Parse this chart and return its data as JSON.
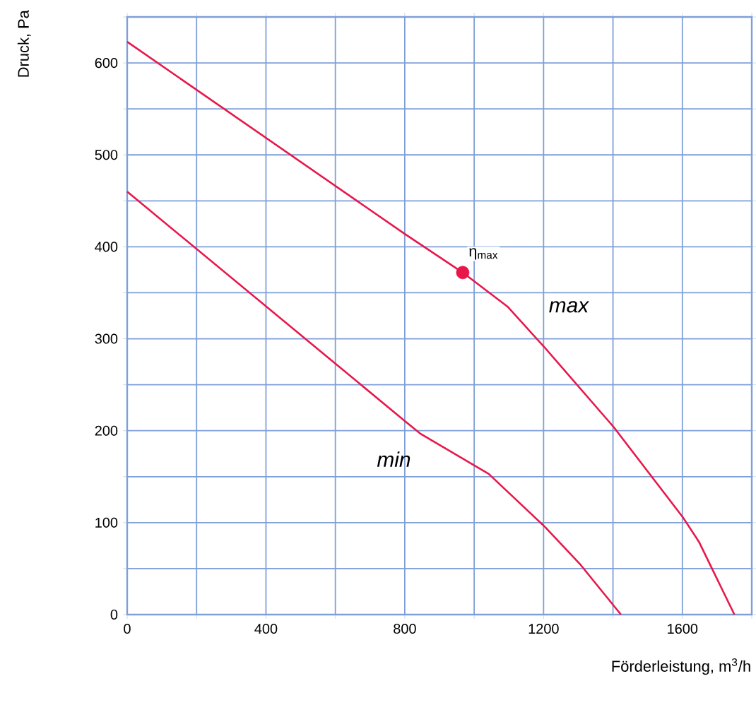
{
  "chart_data": {
    "type": "line",
    "xlabel": "Förderleistung, m$^{3}$/h",
    "ylabel": "Druck, Pa",
    "xlim": [
      0,
      1800
    ],
    "ylim": [
      0,
      650
    ],
    "xticks": [
      0,
      {
        "value": 200,
        "label": null
      },
      400,
      {
        "value": 600,
        "label": null
      },
      800,
      {
        "value": 1000,
        "label": null
      },
      1200,
      {
        "value": 1400,
        "label": null
      },
      1600,
      {
        "value": 1800,
        "label": null
      }
    ],
    "yticks": [
      0,
      {
        "value": 50,
        "label": null
      },
      100,
      {
        "value": 150,
        "label": null
      },
      200,
      {
        "value": 250,
        "label": null
      },
      300,
      {
        "value": 350,
        "label": null
      },
      400,
      {
        "value": 450,
        "label": null
      },
      500,
      {
        "value": 550,
        "label": null
      },
      600,
      {
        "value": 650,
        "label": null
      }
    ],
    "grid": true,
    "line_style": "solid",
    "series": [
      {
        "color": "#e8174a",
        "x": [
          0,
          800,
          967,
          1096,
          1202,
          1402,
          1603,
          1648,
          1750
        ],
        "values": [
          623,
          414,
          372,
          335,
          291,
          204,
          105,
          79,
          0
        ]
      },
      {
        "color": "#e8174a",
        "x": [
          0,
          802,
          844,
          1042,
          1205,
          1307,
          1423
        ],
        "values": [
          460,
          210,
          197,
          153,
          95,
          54,
          0
        ]
      },
      {
        "type": "scatter",
        "marker": "circle",
        "color": "#e8174a",
        "x": [
          967
        ],
        "values": [
          372
        ]
      }
    ],
    "annotations": [
      {
        "text": "η$_{max}$",
        "x": 967,
        "y": 372
      },
      "max",
      "min"
    ]
  }
}
